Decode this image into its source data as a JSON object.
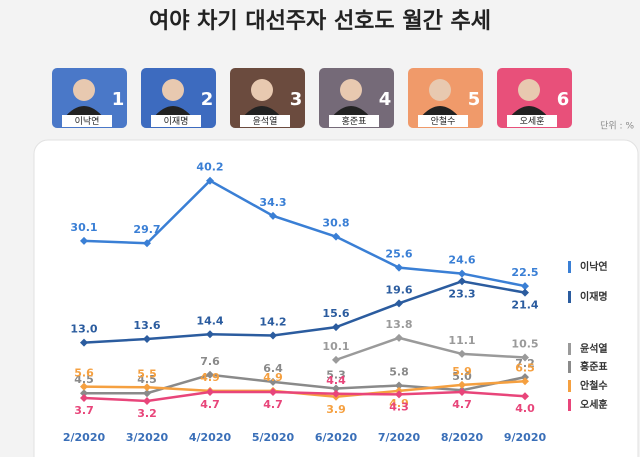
{
  "unit": "단위 : %",
  "candidates": [
    {
      "name": "이낙연",
      "number": 1,
      "color": "#4a78c8"
    },
    {
      "name": "이재명",
      "number": 2,
      "color": "#3d6bbf"
    },
    {
      "name": "윤석열",
      "number": 3,
      "color": "#6b4b3e"
    },
    {
      "name": "홍준표",
      "number": 4,
      "color": "#756a78"
    },
    {
      "name": "안철수",
      "number": 5,
      "color": "#f09a6a"
    },
    {
      "name": "오세훈",
      "number": 6,
      "color": "#e8507a"
    }
  ],
  "chart_data": {
    "type": "line",
    "title": "여야 차기 대선주자 선호도 월간 추세",
    "categories": [
      "2/2020",
      "3/2020",
      "4/2020",
      "5/2020",
      "6/2020",
      "7/2020",
      "8/2020",
      "9/2020"
    ],
    "ylim": [
      0,
      42
    ],
    "series": [
      {
        "name": "이낙연",
        "color": "#3a7fd5",
        "values": [
          30.1,
          29.7,
          40.2,
          34.3,
          30.8,
          25.6,
          24.6,
          22.5
        ],
        "value_labels": [
          "30.1",
          "29.7",
          "40.2",
          "34.3",
          "30.8",
          "25.6",
          "24.6",
          "22.5"
        ]
      },
      {
        "name": "이재명",
        "color": "#2b5c9f",
        "values": [
          13.0,
          13.6,
          14.4,
          14.2,
          15.6,
          19.6,
          23.3,
          21.4
        ],
        "value_labels": [
          "13.0",
          "13.6",
          "14.4",
          "14.2",
          "15.6",
          "19.6",
          "23.3",
          "21.4"
        ]
      },
      {
        "name": "윤석열",
        "color": "#9a9a9a",
        "values": [
          null,
          null,
          null,
          null,
          10.1,
          13.8,
          11.1,
          10.5
        ],
        "value_labels": [
          null,
          null,
          null,
          null,
          "10.1",
          "13.8",
          "11.1",
          "10.5"
        ]
      },
      {
        "name": "홍준표",
        "color": "#8a8a8a",
        "values": [
          4.5,
          4.5,
          7.6,
          6.4,
          5.3,
          5.8,
          5.0,
          7.2
        ],
        "value_labels": [
          "4.5",
          "4.5",
          "7.6",
          "6.4",
          "5.3",
          "5.8",
          "5.0",
          "7.2"
        ]
      },
      {
        "name": "안철수",
        "color": "#f5a040",
        "values": [
          5.6,
          5.5,
          4.9,
          4.9,
          3.9,
          4.9,
          5.9,
          6.5
        ],
        "value_labels": [
          "5.6",
          "5.5",
          "4.9",
          "4.9",
          "3.9",
          "4.9",
          "5.9",
          "6.5"
        ]
      },
      {
        "name": "오세훈",
        "color": "#e8457a",
        "values": [
          3.7,
          3.2,
          4.7,
          4.7,
          4.4,
          4.3,
          4.7,
          4.0
        ],
        "value_labels": [
          "3.7",
          "3.2",
          "4.7",
          "4.7",
          "4.4",
          "4.3",
          "4.7",
          "4.0"
        ]
      }
    ]
  }
}
